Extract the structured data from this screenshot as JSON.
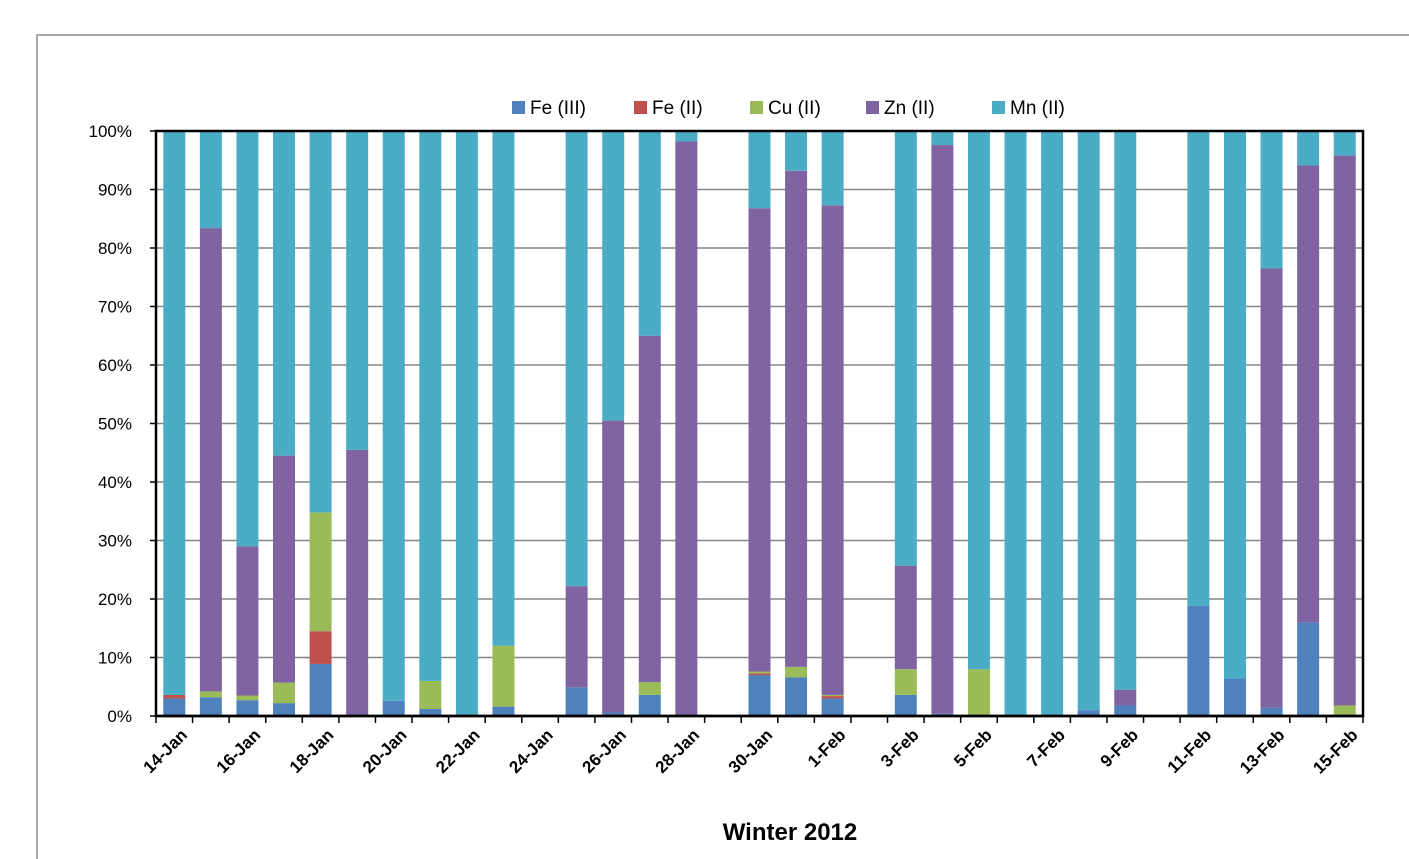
{
  "chart_data": {
    "type": "bar",
    "stacked": true,
    "percent": true,
    "title": "",
    "xlabel": "Winter 2012",
    "ylabel": "",
    "ylim": [
      0,
      100
    ],
    "yticks": [
      "0%",
      "10%",
      "20%",
      "30%",
      "40%",
      "50%",
      "60%",
      "70%",
      "80%",
      "90%",
      "100%"
    ],
    "xtick_labels": [
      "14-Jan",
      "16-Jan",
      "18-Jan",
      "20-Jan",
      "22-Jan",
      "24-Jan",
      "26-Jan",
      "28-Jan",
      "30-Jan",
      "1-Feb",
      "3-Feb",
      "5-Feb",
      "7-Feb",
      "9-Feb",
      "11-Feb",
      "13-Feb",
      "15-Feb"
    ],
    "legend_position": "top",
    "grid": true,
    "categories": [
      "14-Jan",
      "15-Jan",
      "16-Jan",
      "17-Jan",
      "18-Jan",
      "19-Jan",
      "20-Jan",
      "21-Jan",
      "22-Jan",
      "23-Jan",
      "24-Jan",
      "25-Jan",
      "26-Jan",
      "27-Jan",
      "28-Jan",
      "29-Jan",
      "30-Jan",
      "31-Jan",
      "1-Feb",
      "2-Feb",
      "3-Feb",
      "4-Feb",
      "5-Feb",
      "6-Feb",
      "7-Feb",
      "8-Feb",
      "9-Feb",
      "10-Feb",
      "11-Feb",
      "12-Feb",
      "13-Feb",
      "14-Feb",
      "15-Feb"
    ],
    "series": [
      {
        "name": "Fe (III)",
        "color": "#4f81bd",
        "values": [
          3.0,
          3.2,
          2.7,
          2.2,
          8.9,
          0,
          2.6,
          1.2,
          0,
          1.6,
          null,
          4.9,
          0.6,
          3.6,
          0,
          null,
          7.0,
          6.6,
          3.0,
          null,
          3.6,
          0.4,
          0,
          0,
          0,
          1.0,
          1.8,
          null,
          18.8,
          6.4,
          1.4,
          16.0,
          0.2
        ]
      },
      {
        "name": "Fe (II)",
        "color": "#c0504d",
        "values": [
          0.6,
          0,
          0,
          0,
          5.6,
          0,
          0,
          0,
          0,
          0,
          null,
          0,
          0,
          0,
          0,
          null,
          0.3,
          0,
          0.4,
          null,
          0,
          0,
          0,
          0,
          0,
          0,
          0,
          null,
          0,
          0,
          0,
          0,
          0
        ]
      },
      {
        "name": "Cu (II)",
        "color": "#9bbb59",
        "values": [
          0,
          1.0,
          0.8,
          3.5,
          20.3,
          0,
          0,
          4.8,
          0,
          10.4,
          null,
          0,
          0,
          2.2,
          0,
          null,
          0.3,
          1.8,
          0.2,
          null,
          4.4,
          0,
          8.0,
          0,
          0,
          0,
          0,
          null,
          0,
          0,
          0,
          0,
          1.6
        ]
      },
      {
        "name": "Zn (II)",
        "color": "#8064a2",
        "values": [
          0,
          79.2,
          25.5,
          38.8,
          0,
          45.5,
          0,
          0,
          0,
          0,
          null,
          17.3,
          49.9,
          59.2,
          98.2,
          null,
          79.2,
          84.8,
          83.7,
          null,
          17.7,
          97.2,
          0,
          0,
          0,
          0,
          2.7,
          null,
          0,
          0,
          75.1,
          78.1,
          94.0
        ]
      },
      {
        "name": "Mn (II)",
        "color": "#4bacc6",
        "values": [
          96.4,
          16.6,
          71.0,
          55.5,
          65.2,
          54.5,
          97.4,
          94.0,
          100,
          88.0,
          null,
          77.8,
          49.5,
          35.0,
          1.8,
          null,
          13.2,
          6.8,
          12.7,
          null,
          74.3,
          2.4,
          92.0,
          100,
          100,
          99.0,
          95.5,
          null,
          81.2,
          93.6,
          23.5,
          5.9,
          4.2
        ]
      }
    ]
  }
}
